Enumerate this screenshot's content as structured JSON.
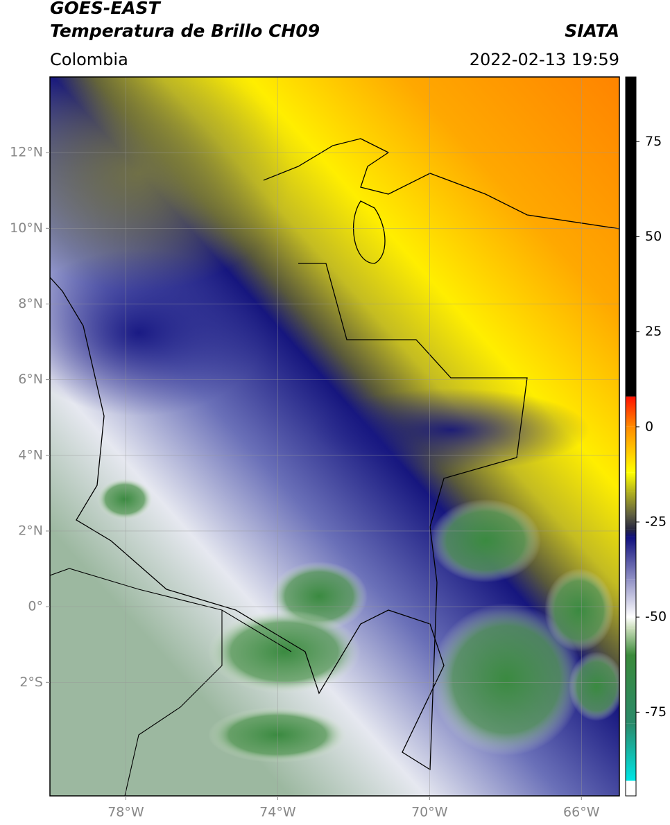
{
  "header": {
    "title": "GOES-EAST",
    "subtitle": "Temperatura de Brillo CH09",
    "source": "SIATA",
    "region": "Colombia",
    "datetime": "2022-02-13 19:59"
  },
  "map": {
    "xlim": [
      -80,
      -65
    ],
    "ylim": [
      -5,
      14
    ],
    "grid": true,
    "xticks": [
      {
        "value": -78,
        "label": "78°W"
      },
      {
        "value": -74,
        "label": "74°W"
      },
      {
        "value": -70,
        "label": "70°W"
      },
      {
        "value": -66,
        "label": "66°W"
      }
    ],
    "yticks": [
      {
        "value": 12,
        "label": "12°N"
      },
      {
        "value": 10,
        "label": "10°N"
      },
      {
        "value": 8,
        "label": "8°N"
      },
      {
        "value": 6,
        "label": "6°N"
      },
      {
        "value": 4,
        "label": "4°N"
      },
      {
        "value": 2,
        "label": "2°N"
      },
      {
        "value": 0,
        "label": "0°"
      },
      {
        "value": -2,
        "label": "2°S"
      }
    ]
  },
  "colorbar": {
    "lim": [
      -97,
      92
    ],
    "ticks": [
      75,
      50,
      25,
      0,
      -25,
      -50,
      -75
    ],
    "stops": [
      {
        "value": -97,
        "color": "#ffffff"
      },
      {
        "value": -93,
        "color": "#ffffff"
      },
      {
        "value": -93,
        "color": "#00e5e5"
      },
      {
        "value": -78,
        "color": "#2a8a6a"
      },
      {
        "value": -60,
        "color": "#3a8a3a"
      },
      {
        "value": -53,
        "color": "#c8dcb8"
      },
      {
        "value": -50,
        "color": "#ffffff"
      },
      {
        "value": -40,
        "color": "#9090c4"
      },
      {
        "value": -29,
        "color": "#10107e"
      },
      {
        "value": -27,
        "color": "#262640"
      },
      {
        "value": -23,
        "color": "#606040"
      },
      {
        "value": -17,
        "color": "#b4b41e"
      },
      {
        "value": -12,
        "color": "#ffff00"
      },
      {
        "value": 0,
        "color": "#ff8c00"
      },
      {
        "value": 8,
        "color": "#ff1000"
      },
      {
        "value": 8,
        "color": "#000000"
      },
      {
        "value": 92,
        "color": "#000000"
      }
    ]
  }
}
